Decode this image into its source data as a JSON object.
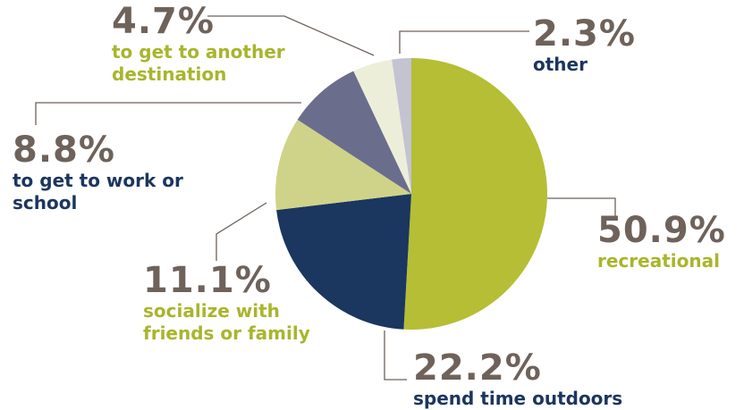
{
  "chart_data": {
    "type": "pie",
    "categories": [
      "recreational",
      "spend time outdoors",
      "socialize with friends or family",
      "to get to work or school",
      "to get to another destination",
      "other"
    ],
    "values": [
      50.9,
      22.2,
      11.1,
      8.8,
      4.7,
      2.3
    ],
    "value_labels": [
      "50.9%",
      "22.2%",
      "11.1%",
      "8.8%",
      "4.7%",
      "2.3%"
    ],
    "colors": [
      "#b5be35",
      "#1b365f",
      "#cfd389",
      "#6b6d8d",
      "#edeed9",
      "#c3c3d2"
    ]
  }
}
